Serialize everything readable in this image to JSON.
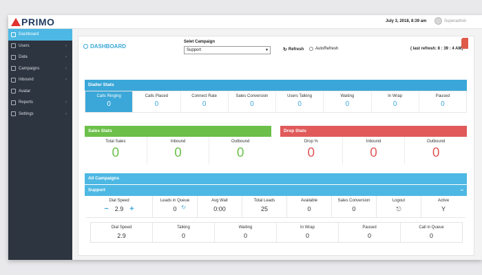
{
  "header": {
    "logo_text": "PRIMO",
    "datetime": "July 3, 2018, 8:39 am",
    "user_name": "Superadmin"
  },
  "sidebar": {
    "items": [
      {
        "label": "Dashboard",
        "icon": "home-icon",
        "active": true
      },
      {
        "label": "Users",
        "icon": "users-icon"
      },
      {
        "label": "Data",
        "icon": "data-icon"
      },
      {
        "label": "Campaigns",
        "icon": "campaigns-icon"
      },
      {
        "label": "Inbound",
        "icon": "inbound-icon"
      },
      {
        "label": "Avatar",
        "icon": "avatar-icon"
      },
      {
        "label": "Reports",
        "icon": "reports-icon"
      },
      {
        "label": "Settings",
        "icon": "settings-icon"
      }
    ]
  },
  "toolbar": {
    "title": "DASHBOARD",
    "campaign_label": "Selet Campaign",
    "campaign_value": "Support",
    "refresh_label": "Refresh",
    "autorefresh_label": "AutoRefresh",
    "last_refresh": "( last refresh: 8 : 39 : 4 AM)"
  },
  "dialler": {
    "title": "Dialler Stats",
    "cells": [
      {
        "label": "Calls Ringing",
        "value": "0"
      },
      {
        "label": "Calls Placed",
        "value": "0"
      },
      {
        "label": "Connect Rate",
        "value": "0"
      },
      {
        "label": "Sales Conversion",
        "value": "0"
      },
      {
        "label": "Users Talking",
        "value": "0"
      },
      {
        "label": "Waiting",
        "value": "0"
      },
      {
        "label": "In Wrap",
        "value": "0"
      },
      {
        "label": "Paused",
        "value": "0"
      }
    ]
  },
  "sales": {
    "title": "Sales Stats",
    "cells": [
      {
        "label": "Total Sales",
        "value": "0"
      },
      {
        "label": "Inbound",
        "value": "0"
      },
      {
        "label": "Outbound",
        "value": "0"
      }
    ]
  },
  "drop": {
    "title": "Drop Stats",
    "cells": [
      {
        "label": "Drop %",
        "value": "0"
      },
      {
        "label": "Inbound",
        "value": "0"
      },
      {
        "label": "Outbound",
        "value": "0"
      }
    ]
  },
  "campaigns": {
    "title": "All Campaigns",
    "support_title": "Support",
    "collapse_symbol": "−",
    "row1": {
      "dial_speed_label": "Dial Speed",
      "dial_speed_value": "2.9",
      "leads_label": "Leads in Queue",
      "leads_value": "0",
      "avg_wait_label": "Avg Wait",
      "avg_wait_value": "0:00",
      "total_leads_label": "Total Leads",
      "total_leads_value": "25",
      "available_label": "Available",
      "available_value": "0",
      "sales_conv_label": "Sales Conversion",
      "sales_conv_value": "0",
      "logout_label": "Logout",
      "active_label": "Active",
      "active_value": "Y"
    },
    "row2": [
      {
        "label": "Dial Speed",
        "value": "2.9"
      },
      {
        "label": "Talking",
        "value": "0"
      },
      {
        "label": "Waiting",
        "value": "0"
      },
      {
        "label": "In Wrap",
        "value": "0"
      },
      {
        "label": "Paused",
        "value": "0"
      },
      {
        "label": "Call in Queue",
        "value": "0"
      }
    ]
  },
  "colors": {
    "accent": "#3aa7d8",
    "green": "#6cc04a",
    "red": "#e05a5a",
    "sidebar": "#2d3540"
  }
}
